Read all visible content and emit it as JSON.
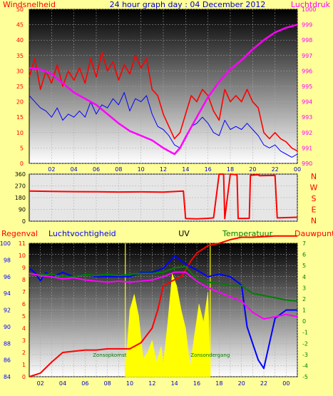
{
  "colors": {
    "background": "#ffff99",
    "wind": "#ff0000",
    "gust_line": "#0000ff",
    "pressure": "#ff00ff",
    "direction": "#ff0000",
    "rain": "#ff0000",
    "humidity": "#0000ff",
    "temperature": "#008000",
    "dewpoint": "#ff00ff",
    "uv": "#ffff00",
    "title": "#0000cc"
  },
  "chart_data": [
    {
      "type": "line",
      "title": "24 hour graph day : 04 December 2012",
      "left_label": "Windsnelheid",
      "right_label": "Luchtdruk",
      "left_ticks": [
        "0",
        "5",
        "10",
        "15",
        "20",
        "25",
        "30",
        "35",
        "40",
        "45",
        "50"
      ],
      "right_ticks": [
        "990",
        "991",
        "992",
        "993",
        "994",
        "995",
        "996",
        "997",
        "998",
        "999",
        "1000"
      ],
      "x_ticks": [
        "02",
        "04",
        "06",
        "08",
        "10",
        "12",
        "14",
        "16",
        "18",
        "20",
        "22",
        "00"
      ],
      "ylim_left": [
        0,
        50
      ],
      "ylim_right": [
        990,
        1000
      ],
      "xlim": [
        0,
        24
      ],
      "grid": true,
      "series": [
        {
          "key": "wind",
          "x": [
            0,
            0.5,
            1,
            1.5,
            2,
            2.5,
            3,
            3.5,
            4,
            4.5,
            5,
            5.5,
            6,
            6.5,
            7,
            7.5,
            8,
            8.5,
            9,
            9.5,
            10,
            10.5,
            11,
            11.5,
            12,
            12.5,
            13,
            13.5,
            14,
            14.5,
            15,
            15.5,
            16,
            16.5,
            17,
            17.5,
            18,
            18.5,
            19,
            19.5,
            20,
            20.5,
            21,
            21.5,
            22,
            22.5,
            23,
            23.5,
            24
          ],
          "y": [
            28,
            34,
            24,
            30,
            26,
            32,
            25,
            30,
            27,
            31,
            26,
            34,
            28,
            36,
            30,
            33,
            27,
            32,
            29,
            35,
            31,
            34,
            24,
            22,
            16,
            12,
            8,
            10,
            16,
            22,
            20,
            24,
            22,
            17,
            14,
            24,
            20,
            22,
            20,
            24,
            20,
            18,
            10,
            8,
            10,
            8,
            7,
            5,
            4
          ]
        },
        {
          "key": "gust_line",
          "x": [
            0,
            0.5,
            1,
            1.5,
            2,
            2.5,
            3,
            3.5,
            4,
            4.5,
            5,
            5.5,
            6,
            6.5,
            7,
            7.5,
            8,
            8.5,
            9,
            9.5,
            10,
            10.5,
            11,
            11.5,
            12,
            12.5,
            13,
            13.5,
            14,
            14.5,
            15,
            15.5,
            16,
            16.5,
            17,
            17.5,
            18,
            18.5,
            19,
            19.5,
            20,
            20.5,
            21,
            21.5,
            22,
            22.5,
            23,
            23.5,
            24
          ],
          "y": [
            22,
            20,
            18,
            17,
            15,
            18,
            14,
            16,
            15,
            17,
            15,
            20,
            16,
            19,
            18,
            21,
            19,
            23,
            17,
            21,
            20,
            22,
            16,
            12,
            11,
            9,
            6,
            5,
            8,
            12,
            13,
            15,
            13,
            10,
            9,
            14,
            11,
            12,
            11,
            13,
            11,
            9,
            6,
            5,
            6,
            4,
            3,
            2,
            3
          ]
        },
        {
          "key": "pressure",
          "x": [
            0,
            1,
            2,
            3,
            4,
            5,
            6,
            7,
            8,
            9,
            10,
            11,
            12,
            12.5,
            13,
            13.5,
            14,
            15,
            16,
            17,
            18,
            19,
            20,
            21,
            22,
            23,
            24
          ],
          "y": [
            996.2,
            996.1,
            995.8,
            995.2,
            994.6,
            994.2,
            993.8,
            993.2,
            992.6,
            992.1,
            991.8,
            991.5,
            991.0,
            990.8,
            990.6,
            991.0,
            991.7,
            993.0,
            994.3,
            995.3,
            996.1,
            996.7,
            997.4,
            998.0,
            998.5,
            998.8,
            999.0
          ]
        }
      ]
    },
    {
      "type": "line",
      "right_ticks": [
        "N",
        "W",
        "S",
        "E",
        "N"
      ],
      "left_ticks": [
        "0",
        "90",
        "180",
        "270",
        "360"
      ],
      "ylim": [
        0,
        360
      ],
      "xlim": [
        0,
        24
      ],
      "series": [
        {
          "key": "direction",
          "x": [
            0,
            2,
            4,
            6,
            8,
            10,
            12,
            13.8,
            14,
            15,
            16,
            16.5,
            17,
            17.4,
            17.5,
            18,
            18.6,
            18.7,
            19.7,
            19.8,
            20.5,
            20.6,
            22,
            22.2,
            24
          ],
          "y": [
            230,
            228,
            226,
            225,
            223,
            224,
            222,
            230,
            20,
            18,
            22,
            25,
            360,
            362,
            20,
            360,
            355,
            20,
            22,
            350,
            355,
            348,
            350,
            25,
            30
          ]
        }
      ]
    },
    {
      "type": "line",
      "title_labels": [
        "Regenval",
        "Luchtvochtigheid",
        "UV",
        "Temperatuur",
        "Dauwpunt"
      ],
      "left_ticks": [
        "84",
        "86",
        "88",
        "90",
        "92",
        "94",
        "96",
        "98",
        "100"
      ],
      "left_ticks2": [
        "0",
        "1",
        "2",
        "3",
        "4",
        "5",
        "6",
        "7",
        "8",
        "9",
        "10",
        "11"
      ],
      "right_ticks": [
        "-5",
        "-4",
        "-3",
        "-2",
        "-1",
        "0",
        "1",
        "2",
        "3",
        "4",
        "5",
        "6",
        "7"
      ],
      "annotations": [
        "Zonsopkomst",
        "Zonsondergang"
      ],
      "ylim_hum": [
        84,
        100
      ],
      "ylim_uv": [
        0,
        11
      ],
      "ylim_temp": [
        -5,
        7
      ],
      "xlim": [
        0,
        24
      ],
      "series": [
        {
          "key": "rain",
          "x": [
            0,
            1,
            2,
            3,
            4,
            5,
            6,
            7,
            8,
            9,
            10,
            11,
            11.5,
            12,
            13,
            13.7,
            14,
            14.5,
            15,
            16,
            17,
            18,
            19,
            20,
            22,
            24
          ],
          "y": [
            0,
            0.3,
            1.2,
            2.0,
            2.1,
            2.2,
            2.2,
            2.3,
            2.3,
            2.3,
            2.8,
            4.0,
            5.5,
            7.5,
            8.0,
            8.3,
            8.8,
            9.6,
            10.2,
            10.8,
            11.0,
            11.3,
            11.5,
            11.5,
            11.6,
            11.6
          ]
        },
        {
          "key": "humidity",
          "x": [
            0,
            0.5,
            1,
            1.5,
            2,
            3,
            4,
            5,
            6,
            7,
            8,
            9,
            10,
            11,
            12,
            13,
            14,
            15,
            16,
            17,
            18,
            19,
            19.5,
            20,
            20.5,
            21,
            21.5,
            22,
            23,
            24
          ],
          "y": [
            97,
            96.5,
            95.5,
            96.5,
            96,
            96.5,
            96,
            96.3,
            96,
            96,
            96,
            96,
            96.5,
            96.5,
            97,
            98.5,
            97.5,
            96.8,
            96,
            96.3,
            96,
            95,
            90,
            88,
            86,
            85,
            88,
            91,
            92,
            92
          ]
        },
        {
          "key": "temperature",
          "x": [
            0,
            1,
            2,
            3,
            4,
            5,
            6,
            7,
            8,
            9,
            10,
            11,
            12,
            13,
            14,
            15,
            16,
            17,
            18,
            19,
            20,
            21,
            22,
            23,
            24
          ],
          "y": [
            4.1,
            4.2,
            4.2,
            4.0,
            4.0,
            4.2,
            4.1,
            4.2,
            4.1,
            4.2,
            4.3,
            4.3,
            4.4,
            4.8,
            4.9,
            3.8,
            3.5,
            3.4,
            3.2,
            3.2,
            2.5,
            2.3,
            2.1,
            1.9,
            1.8
          ]
        },
        {
          "key": "dewpoint",
          "x": [
            0,
            1,
            2,
            3,
            4,
            5,
            6,
            7,
            8,
            9,
            10,
            11,
            12,
            13,
            14,
            15,
            16,
            17,
            18,
            19,
            20,
            21,
            22,
            23,
            24
          ],
          "y": [
            4.3,
            4.1,
            4.0,
            3.8,
            3.9,
            3.7,
            3.6,
            3.5,
            3.6,
            3.5,
            3.6,
            3.7,
            4.0,
            4.4,
            4.4,
            3.6,
            3.0,
            2.6,
            2.2,
            1.8,
            0.8,
            0.2,
            0.4,
            0.6,
            0.4
          ]
        },
        {
          "key": "uv",
          "x": [
            8.6,
            9,
            9.4,
            9.8,
            10.2,
            10.6,
            11,
            11.4,
            11.8,
            12,
            12.4,
            12.8,
            13.2,
            13.6,
            14,
            14.4,
            14.8,
            15.2,
            15.6,
            16,
            16.2
          ],
          "y": [
            0.2,
            5.5,
            6.8,
            5.0,
            1.5,
            2.0,
            3.0,
            1.2,
            2.5,
            1.0,
            4.5,
            8.5,
            7.5,
            5.5,
            4.0,
            0.8,
            3.5,
            6.0,
            4.5,
            7.0,
            0.2
          ]
        }
      ]
    }
  ]
}
